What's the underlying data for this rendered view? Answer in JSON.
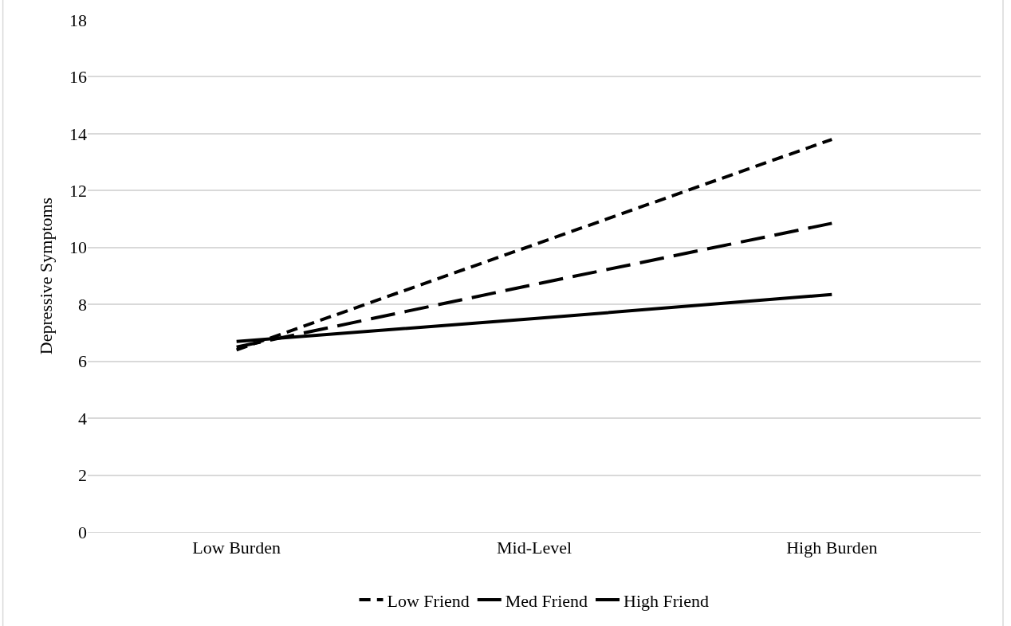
{
  "chart_data": {
    "type": "line",
    "ylabel": "Depressive Symptoms",
    "categories": [
      "Low Burden",
      "Mid-Level",
      "High Burden"
    ],
    "ylim": [
      0,
      18
    ],
    "yticks": [
      0,
      2,
      4,
      6,
      8,
      10,
      12,
      14,
      16,
      18
    ],
    "grid": "y",
    "legend": "bottom",
    "marker": "none",
    "series": [
      {
        "name": "Low Friend",
        "color": "#000000",
        "line_style": "dashed",
        "values": [
          6.4,
          10.1,
          13.8
        ]
      },
      {
        "name": "Med Friend",
        "color": "#000000",
        "line_style": "dashed",
        "values": [
          6.5,
          8.7,
          10.85
        ]
      },
      {
        "name": "High Friend",
        "color": "#000000",
        "line_style": "solid",
        "values": [
          6.7,
          7.5,
          8.35
        ]
      }
    ]
  }
}
